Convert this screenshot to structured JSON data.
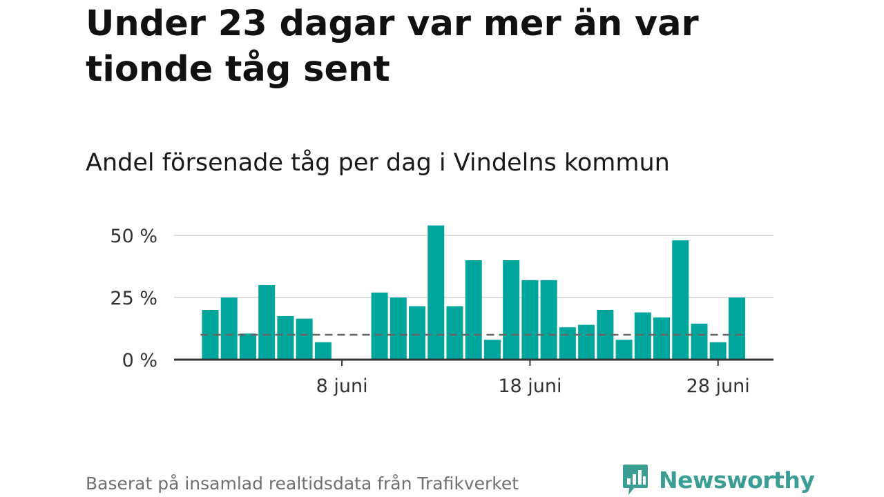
{
  "title": "Under 23 dagar var mer än var tionde tåg sent",
  "subtitle": "Andel försenade tåg per dag i Vindelns kommun",
  "source": "Baserat på insamlad realtidsdata från Trafikverket",
  "brand": {
    "name": "Newsworthy",
    "color": "#3b9e95",
    "logo_icon": "bar-chart-speech-bubble-icon"
  },
  "colors": {
    "bar": "#00a59b",
    "grid": "#dddddd",
    "axis": "#333333",
    "reference_line": "#666666"
  },
  "chart_data": {
    "type": "bar",
    "x": [
      1,
      2,
      3,
      4,
      5,
      6,
      7,
      8,
      9,
      10,
      11,
      12,
      13,
      14,
      15,
      16,
      17,
      18,
      19,
      20,
      21,
      22,
      23,
      24,
      25,
      26,
      27,
      28,
      29,
      30
    ],
    "x_unit": "day of June",
    "values": [
      20,
      25,
      10.5,
      30,
      17.5,
      16.5,
      7,
      null,
      null,
      27,
      25,
      21.5,
      54,
      21.5,
      40,
      8,
      40,
      32,
      32,
      13,
      14,
      20,
      8,
      19,
      17,
      48,
      14.5,
      7,
      25,
      null
    ],
    "unit": "%",
    "ylim": [
      0,
      55
    ],
    "yticks": [
      {
        "value": 0,
        "label": "0 %"
      },
      {
        "value": 25,
        "label": "25 %"
      },
      {
        "value": 50,
        "label": "50 %"
      }
    ],
    "xticks": [
      {
        "value": 8,
        "label": "8 juni"
      },
      {
        "value": 18,
        "label": "18 juni"
      },
      {
        "value": 28,
        "label": "28 juni"
      }
    ],
    "reference_line": {
      "value": 10,
      "style": "dashed"
    },
    "grid": true,
    "legend": "none"
  }
}
